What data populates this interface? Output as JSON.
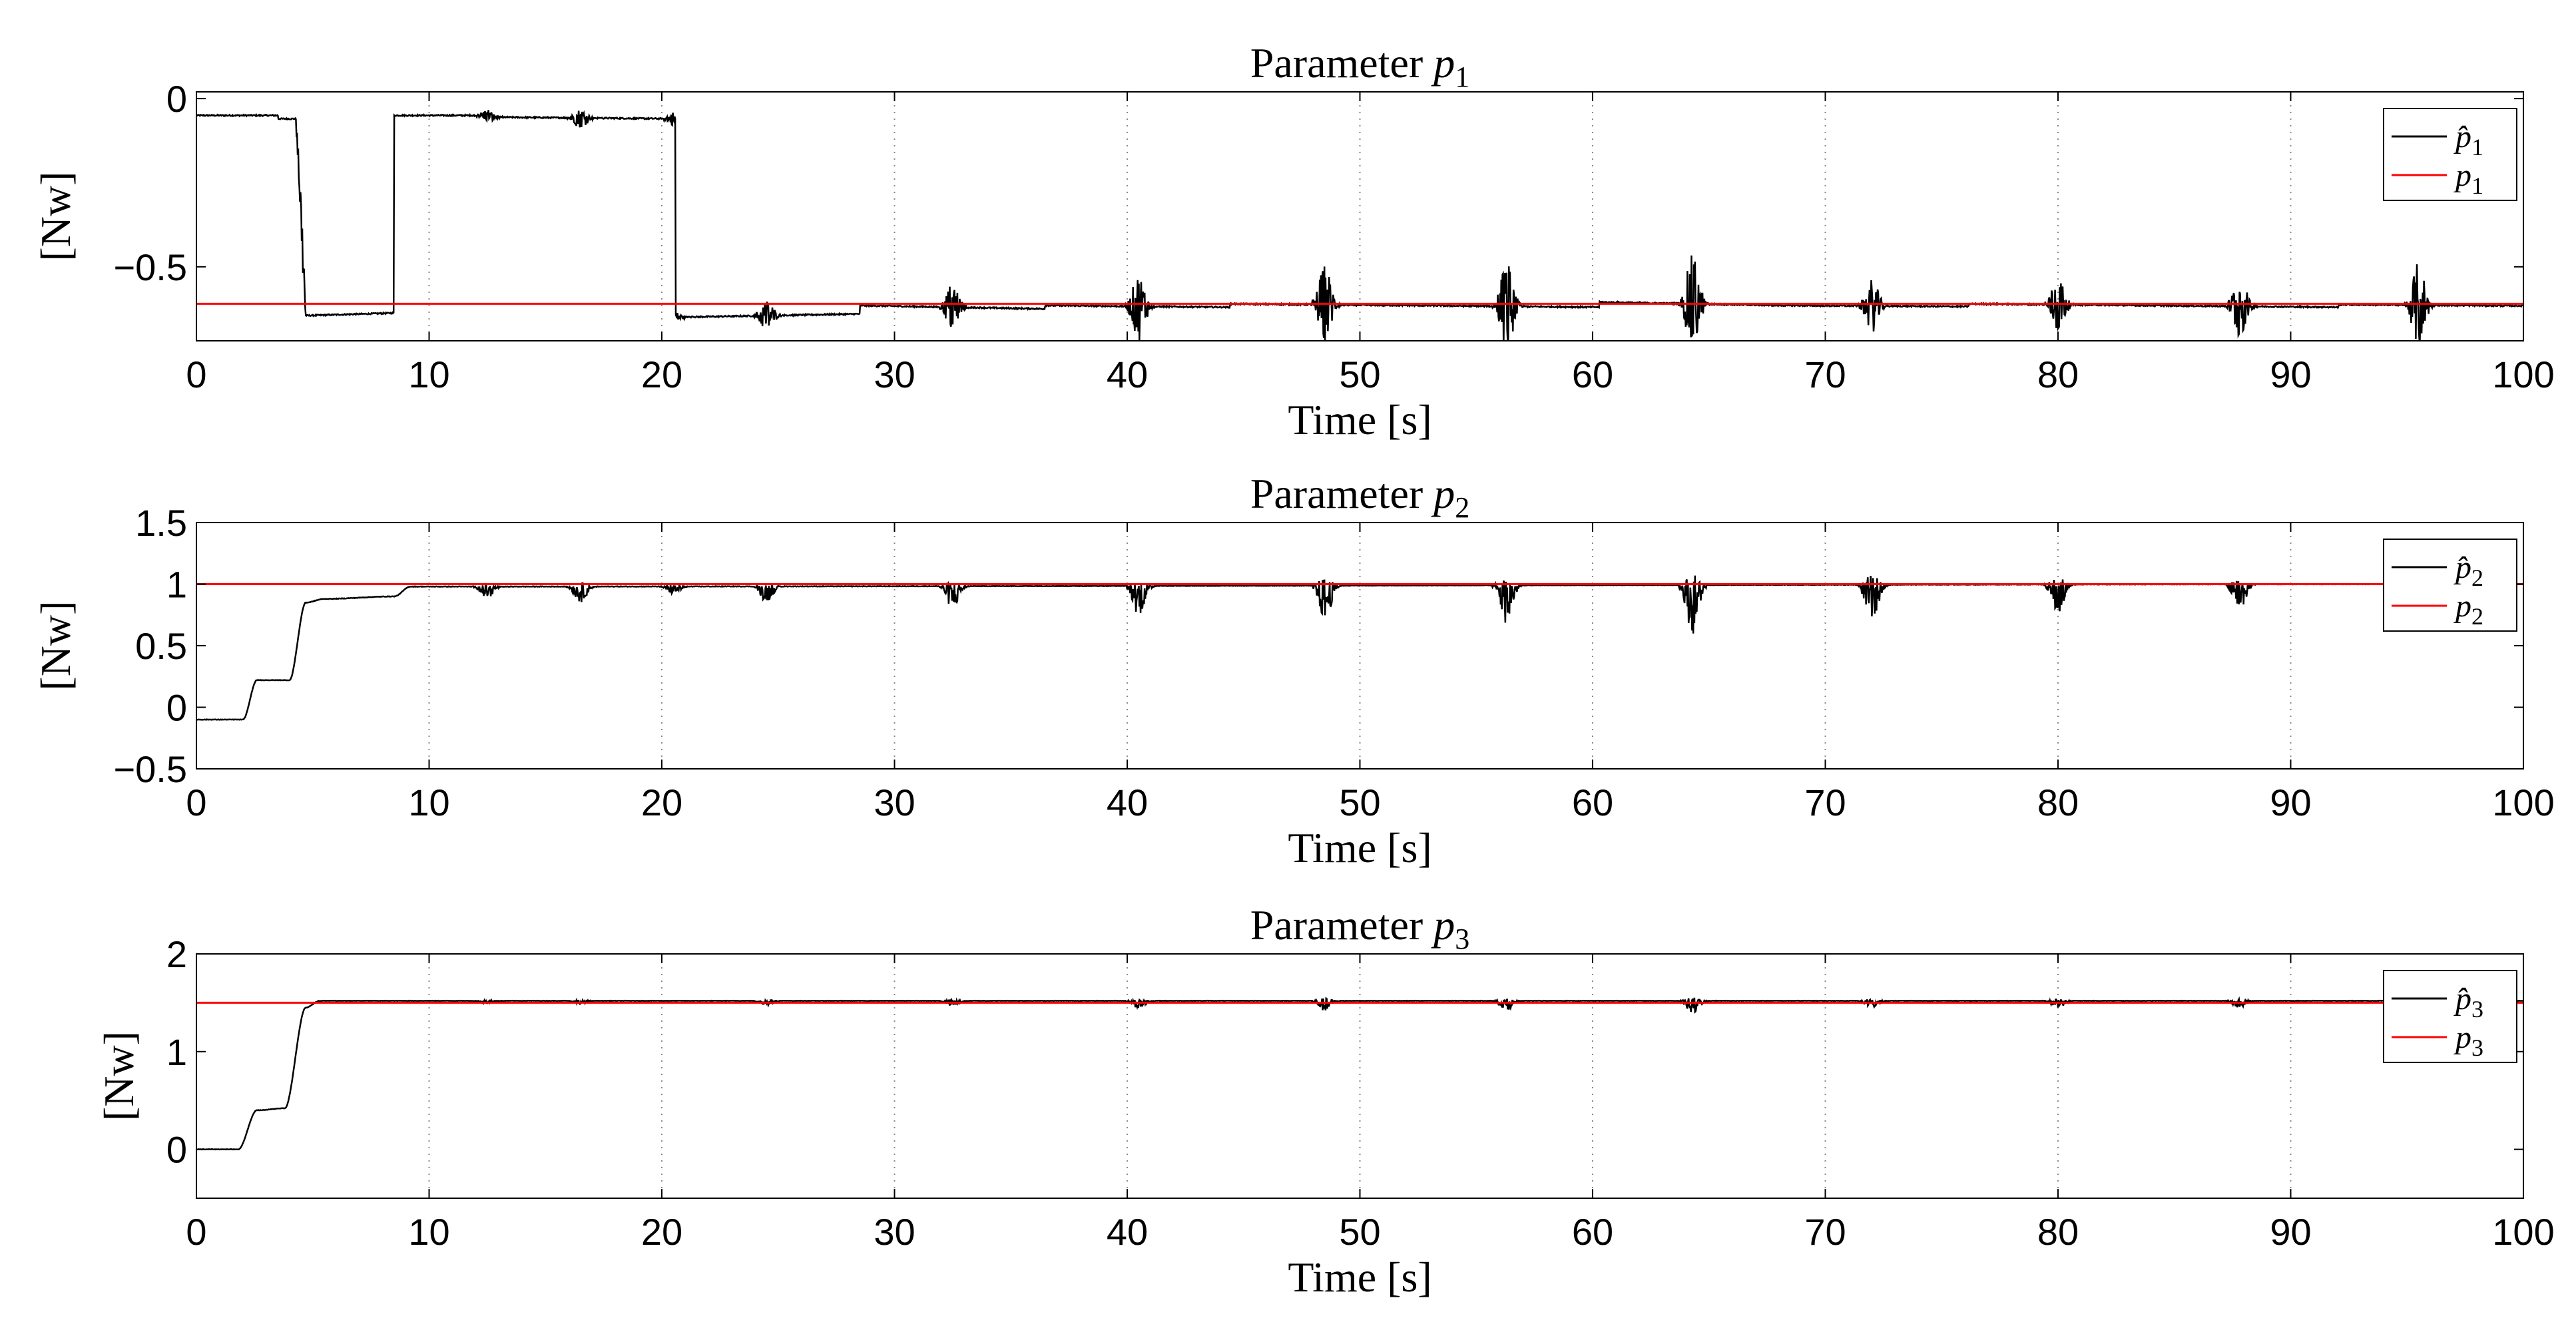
{
  "chart_data": [
    {
      "type": "line",
      "title": "Parameter p1",
      "title_main": "Parameter ",
      "title_symbol": "p",
      "title_sub": "1",
      "xlabel": "Time [s]",
      "ylabel": "[Nw]",
      "xlim": [
        0,
        100
      ],
      "ylim": [
        -0.72,
        0.02
      ],
      "xticks": [
        0,
        10,
        20,
        30,
        40,
        50,
        60,
        70,
        80,
        90,
        100
      ],
      "yticks": [
        0,
        -0.5
      ],
      "ytick_labels": [
        "0",
        "−0.5"
      ],
      "grid": "vertical dotted",
      "legend_position": "top-right",
      "series": [
        {
          "name": "p̂1",
          "legend_symbol": "p̂",
          "legend_sub": "1",
          "color": "#000000",
          "style": "estimate",
          "initial": -0.05,
          "final": -0.615,
          "transition": [
            4.3,
            4.7
          ],
          "segments": [
            [
              -0.05,
              -0.05
            ],
            [
              -0.055,
              -0.06
            ],
            [
              -0.65,
              -0.64
            ],
            [
              -0.615,
              -0.625
            ],
            [
              -0.615,
              -0.62
            ],
            [
              -0.61,
              -0.615
            ],
            [
              -0.615,
              -0.62
            ],
            [
              -0.605,
              -0.615
            ],
            [
              -0.615,
              -0.618
            ],
            [
              -0.61,
              -0.615
            ],
            [
              -0.615,
              -0.62
            ],
            [
              -0.612,
              -0.616
            ]
          ],
          "bursts": [
            {
              "t": 12.5,
              "amp": 0.02
            },
            {
              "t": 16.5,
              "amp": 0.03
            },
            {
              "t": 20.5,
              "amp": 0.02
            },
            {
              "t": 24.5,
              "amp": 0.05
            },
            {
              "t": 32.5,
              "amp": 0.08
            },
            {
              "t": 40.5,
              "amp": 0.1
            },
            {
              "t": 48.5,
              "amp": 0.12
            },
            {
              "t": 56.3,
              "amp": 0.14
            },
            {
              "t": 64.3,
              "amp": 0.15
            },
            {
              "t": 72.0,
              "amp": 0.08
            },
            {
              "t": 80.0,
              "amp": 0.09
            },
            {
              "t": 87.8,
              "amp": 0.1
            },
            {
              "t": 95.5,
              "amp": 0.13
            }
          ]
        },
        {
          "name": "p1",
          "legend_symbol": "p",
          "legend_sub": "1",
          "color": "#ff0000",
          "style": "constant",
          "value": -0.61
        }
      ]
    },
    {
      "type": "line",
      "title": "Parameter p2",
      "title_main": "Parameter ",
      "title_symbol": "p",
      "title_sub": "2",
      "xlabel": "Time [s]",
      "ylabel": "[Nw]",
      "xlim": [
        0,
        100
      ],
      "ylim": [
        -0.5,
        1.5
      ],
      "xticks": [
        0,
        10,
        20,
        30,
        40,
        50,
        60,
        70,
        80,
        90,
        100
      ],
      "yticks": [
        1.5,
        1,
        0.5,
        0,
        -0.5
      ],
      "ytick_labels": [
        "1.5",
        "1",
        "0.5",
        "0",
        "−0.5"
      ],
      "grid": "vertical dotted",
      "legend_position": "top-right",
      "series": [
        {
          "name": "p̂2",
          "legend_symbol": "p̂",
          "legend_sub": "2",
          "color": "#000000",
          "style": "estimate",
          "steps": [
            [
              0,
              -0.1
            ],
            [
              2.0,
              -0.1
            ],
            [
              2.6,
              0.22
            ],
            [
              4.0,
              0.22
            ],
            [
              4.7,
              0.85
            ],
            [
              5.5,
              0.88
            ],
            [
              8.5,
              0.9
            ],
            [
              9.2,
              0.98
            ],
            [
              100,
              1.0
            ]
          ],
          "bursts": [
            {
              "t": 12.5,
              "amp": 0.06
            },
            {
              "t": 16.5,
              "amp": 0.08
            },
            {
              "t": 20.5,
              "amp": 0.04
            },
            {
              "t": 24.5,
              "amp": 0.08
            },
            {
              "t": 32.5,
              "amp": 0.12
            },
            {
              "t": 40.5,
              "amp": 0.15
            },
            {
              "t": 48.5,
              "amp": 0.18
            },
            {
              "t": 56.3,
              "amp": 0.2
            },
            {
              "t": 64.3,
              "amp": 0.25
            },
            {
              "t": 72.0,
              "amp": 0.2
            },
            {
              "t": 80.0,
              "amp": 0.16
            },
            {
              "t": 87.8,
              "amp": 0.14
            }
          ]
        },
        {
          "name": "p2",
          "legend_symbol": "p",
          "legend_sub": "2",
          "color": "#ff0000",
          "style": "constant",
          "value": 1.0
        }
      ]
    },
    {
      "type": "line",
      "title": "Parameter p3",
      "title_main": "Parameter ",
      "title_symbol": "p",
      "title_sub": "3",
      "xlabel": "Time [s]",
      "ylabel": "[Nw]",
      "xlim": [
        0,
        100
      ],
      "ylim": [
        -0.5,
        2.0
      ],
      "xticks": [
        0,
        10,
        20,
        30,
        40,
        50,
        60,
        70,
        80,
        90,
        100
      ],
      "yticks": [
        2,
        1,
        0
      ],
      "ytick_labels": [
        "2",
        "1",
        "0"
      ],
      "grid": "vertical dotted",
      "legend_position": "top-right",
      "series": [
        {
          "name": "p̂3",
          "legend_symbol": "p̂",
          "legend_sub": "3",
          "color": "#000000",
          "style": "estimate",
          "steps": [
            [
              0,
              0.0
            ],
            [
              1.8,
              0.0
            ],
            [
              2.6,
              0.4
            ],
            [
              3.8,
              0.42
            ],
            [
              4.7,
              1.45
            ],
            [
              5.3,
              1.52
            ],
            [
              100,
              1.52
            ]
          ],
          "bursts": [
            {
              "t": 12.5,
              "amp": 0.02
            },
            {
              "t": 16.5,
              "amp": 0.02
            },
            {
              "t": 24.5,
              "amp": 0.03
            },
            {
              "t": 32.5,
              "amp": 0.04
            },
            {
              "t": 40.5,
              "amp": 0.05
            },
            {
              "t": 48.5,
              "amp": 0.07
            },
            {
              "t": 56.3,
              "amp": 0.06
            },
            {
              "t": 64.3,
              "amp": 0.09
            },
            {
              "t": 72.0,
              "amp": 0.05
            },
            {
              "t": 80.0,
              "amp": 0.05
            },
            {
              "t": 87.8,
              "amp": 0.05
            }
          ]
        },
        {
          "name": "p3",
          "legend_symbol": "p",
          "legend_sub": "3",
          "color": "#ff0000",
          "style": "constant",
          "value": 1.5
        }
      ]
    }
  ]
}
